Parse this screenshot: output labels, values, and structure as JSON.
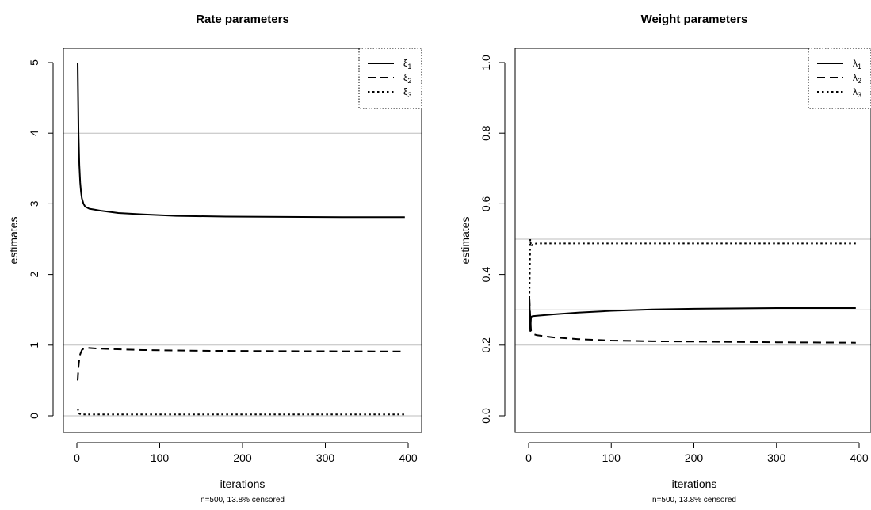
{
  "chart_data": [
    {
      "type": "line",
      "title": "Rate parameters",
      "xlabel": "iterations",
      "ylabel": "estimates",
      "subtitle": "n=500, 13.8% censored",
      "xlim": [
        0,
        400
      ],
      "ylim": [
        0,
        5
      ],
      "xticks": [
        0,
        100,
        200,
        300,
        400
      ],
      "yticks": [
        0,
        1,
        2,
        3,
        4,
        5
      ],
      "legend_position": "top-right",
      "legend": [
        {
          "label": "ξ",
          "sub": "1",
          "style": "solid"
        },
        {
          "label": "ξ",
          "sub": "2",
          "style": "dashed"
        },
        {
          "label": "ξ",
          "sub": "3",
          "style": "dotted"
        }
      ],
      "reference_lines": [
        4,
        1,
        0
      ],
      "series": [
        {
          "style": "solid",
          "x": [
            1,
            2,
            3,
            4,
            5,
            6,
            8,
            10,
            15,
            20,
            30,
            50,
            80,
            120,
            180,
            250,
            320,
            396
          ],
          "y": [
            5.0,
            4.0,
            3.55,
            3.3,
            3.17,
            3.08,
            3.0,
            2.96,
            2.93,
            2.92,
            2.9,
            2.87,
            2.85,
            2.83,
            2.82,
            2.815,
            2.81,
            2.81
          ]
        },
        {
          "style": "dashed",
          "x": [
            1,
            2,
            3,
            4,
            6,
            8,
            10,
            15,
            20,
            40,
            80,
            150,
            250,
            396
          ],
          "y": [
            0.5,
            0.7,
            0.8,
            0.87,
            0.93,
            0.95,
            0.96,
            0.96,
            0.955,
            0.945,
            0.93,
            0.92,
            0.915,
            0.91
          ]
        },
        {
          "style": "dotted",
          "x": [
            1,
            2,
            3,
            5,
            10,
            100,
            200,
            300,
            396
          ],
          "y": [
            0.1,
            0.06,
            0.03,
            0.02,
            0.02,
            0.02,
            0.02,
            0.02,
            0.02
          ]
        }
      ]
    },
    {
      "type": "line",
      "title": "Weight parameters",
      "xlabel": "iterations",
      "ylabel": "estimates",
      "subtitle": "n=500, 13.8% censored",
      "xlim": [
        0,
        400
      ],
      "ylim": [
        0,
        1
      ],
      "xticks": [
        0,
        100,
        200,
        300,
        400
      ],
      "yticks": [
        0.0,
        0.2,
        0.4,
        0.6,
        0.8,
        1.0
      ],
      "ytick_labels": [
        "0.0",
        "0.2",
        "0.4",
        "0.6",
        "0.8",
        "1.0"
      ],
      "legend_position": "top-right",
      "legend": [
        {
          "label": "λ",
          "sub": "1",
          "style": "solid"
        },
        {
          "label": "λ",
          "sub": "2",
          "style": "dashed"
        },
        {
          "label": "λ",
          "sub": "3",
          "style": "dotted"
        }
      ],
      "reference_lines": [
        0.5,
        0.3,
        0.2
      ],
      "series": [
        {
          "style": "solid",
          "x": [
            1,
            2,
            3,
            5,
            10,
            30,
            60,
            100,
            150,
            200,
            300,
            396
          ],
          "y": [
            0.333,
            0.24,
            0.28,
            0.282,
            0.283,
            0.287,
            0.292,
            0.297,
            0.301,
            0.303,
            0.305,
            0.305
          ]
        },
        {
          "style": "dashed",
          "x": [
            1,
            2,
            3,
            5,
            10,
            30,
            60,
            100,
            150,
            200,
            300,
            396
          ],
          "y": [
            0.333,
            0.28,
            0.24,
            0.232,
            0.228,
            0.222,
            0.217,
            0.213,
            0.211,
            0.21,
            0.208,
            0.207
          ]
        },
        {
          "style": "dotted",
          "x": [
            1,
            2,
            3,
            5,
            10,
            50,
            100,
            200,
            300,
            396
          ],
          "y": [
            0.333,
            0.5,
            0.48,
            0.486,
            0.488,
            0.488,
            0.488,
            0.488,
            0.488,
            0.488
          ]
        }
      ]
    }
  ]
}
